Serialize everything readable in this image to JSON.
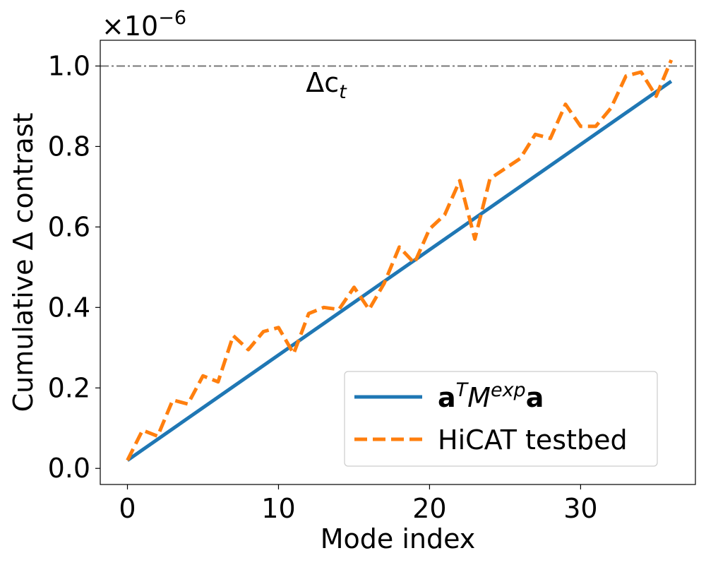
{
  "chart_data": {
    "type": "line",
    "xlabel": "Mode index",
    "ylabel": "Cumulative Δ contrast",
    "y_multiplier": "×10",
    "y_multiplier_exp": "−6",
    "xlim": [
      -1.8,
      37.6
    ],
    "ylim": [
      -0.04,
      1.064
    ],
    "xticks": [
      0,
      10,
      20,
      30
    ],
    "yticks": [
      0.0,
      0.2,
      0.4,
      0.6,
      0.8,
      1.0
    ],
    "xtick_labels": [
      "0",
      "10",
      "20",
      "30"
    ],
    "ytick_labels": [
      "0.0",
      "0.2",
      "0.4",
      "0.6",
      "0.8",
      "1.0"
    ],
    "legend_position": "lower-right",
    "threshold": {
      "y": 1.0,
      "label_main": "Δc",
      "label_sub": "t",
      "label_x": 12,
      "label_y": 0.92
    },
    "series": [
      {
        "name_parts": [
          "a",
          "T",
          "M",
          "exp",
          "a"
        ],
        "color": "#1f77b4",
        "style": "solid",
        "x": [
          0,
          36
        ],
        "y": [
          0.02,
          0.962
        ]
      },
      {
        "name": "HiCAT testbed",
        "color": "#ff7f0e",
        "style": "dashed",
        "x": [
          0,
          1,
          2,
          3,
          4,
          5,
          6,
          7,
          8,
          9,
          10,
          11,
          12,
          13,
          14,
          15,
          16,
          17,
          18,
          19,
          20,
          21,
          22,
          23,
          24,
          25,
          26,
          27,
          28,
          29,
          30,
          31,
          32,
          33,
          34,
          35,
          36
        ],
        "y": [
          0.02,
          0.095,
          0.08,
          0.17,
          0.16,
          0.23,
          0.215,
          0.33,
          0.295,
          0.34,
          0.35,
          0.285,
          0.385,
          0.4,
          0.395,
          0.45,
          0.395,
          0.46,
          0.55,
          0.51,
          0.595,
          0.63,
          0.715,
          0.57,
          0.72,
          0.745,
          0.77,
          0.83,
          0.82,
          0.905,
          0.85,
          0.85,
          0.895,
          0.975,
          0.985,
          0.925,
          1.015
        ]
      }
    ]
  }
}
